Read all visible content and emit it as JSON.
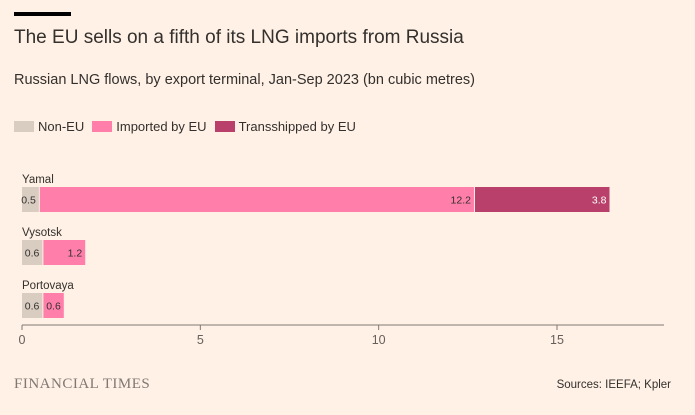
{
  "header": {
    "title": "The EU sells on a fifth of its LNG imports from Russia",
    "subtitle": "Russian LNG flows, by export terminal, Jan-Sep 2023 (bn cubic metres)"
  },
  "footer": {
    "logo": "FINANCIAL TIMES",
    "source": "Sources: IEEFA; Kpler"
  },
  "chart_data": {
    "type": "bar",
    "orientation": "horizontal",
    "stacked": true,
    "categories": [
      "Yamal",
      "Vysotsk",
      "Portovaya"
    ],
    "series": [
      {
        "name": "Non-EU",
        "values": [
          0.5,
          0.6,
          0.6
        ],
        "color": "#d9cdc2",
        "label_color": "#33302e"
      },
      {
        "name": "Imported by EU",
        "values": [
          12.2,
          1.2,
          0.6
        ],
        "color": "#ff7faa",
        "label_color": "#33302e"
      },
      {
        "name": "Transshipped by EU",
        "values": [
          3.8,
          null,
          null
        ],
        "color": "#b8406a",
        "label_color": "#ffffff"
      }
    ],
    "value_labels": [
      [
        "0.5",
        "12.2",
        "3.8"
      ],
      [
        "0.6",
        "1.2",
        ""
      ],
      [
        "0.6",
        "0.6",
        ""
      ]
    ],
    "xlim": [
      0,
      18
    ],
    "xticks": [
      0,
      5,
      10,
      15
    ],
    "xtick_labels": [
      "0",
      "5",
      "10",
      "15"
    ],
    "xlabel": "",
    "ylabel": "",
    "grid": false,
    "legend_position": "top-left"
  }
}
